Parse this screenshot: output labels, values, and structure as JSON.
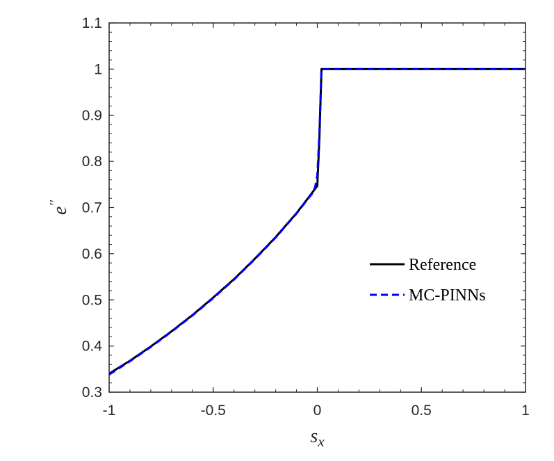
{
  "chart_data": {
    "type": "line",
    "xlabel": "s",
    "xlabel_sub": "x",
    "ylabel": "e",
    "ylabel_sup": "′′",
    "xlim": [
      -1,
      1
    ],
    "ylim": [
      0.3,
      1.1
    ],
    "xticks": [
      -1,
      -0.5,
      0,
      0.5,
      1
    ],
    "xtick_labels": [
      "-1",
      "-0.5",
      "0",
      "0.5",
      "1"
    ],
    "yticks": [
      0.3,
      0.4,
      0.5,
      0.6,
      0.7,
      0.8,
      0.9,
      1.0,
      1.1
    ],
    "ytick_labels": [
      "0.3",
      "0.4",
      "0.5",
      "0.6",
      "0.7",
      "0.8",
      "0.9",
      "1",
      "1.1"
    ],
    "grid": false,
    "box": true,
    "legend_position": "right",
    "series": [
      {
        "name": "Reference",
        "color": "#000000",
        "style": "solid",
        "x": [
          -1,
          -0.9,
          -0.8,
          -0.7,
          -0.6,
          -0.5,
          -0.4,
          -0.3,
          -0.2,
          -0.1,
          -0.05,
          -0.02,
          0.0,
          0.01,
          0.02,
          0.5,
          1.0
        ],
        "y": [
          0.34,
          0.368,
          0.399,
          0.432,
          0.467,
          0.505,
          0.545,
          0.589,
          0.636,
          0.688,
          0.717,
          0.735,
          0.747,
          0.85,
          1.0,
          1.0,
          1.0
        ]
      },
      {
        "name": "MC-PINNs",
        "color": "#0000ff",
        "style": "dashed",
        "x": [
          -1,
          -0.9,
          -0.8,
          -0.7,
          -0.6,
          -0.5,
          -0.4,
          -0.3,
          -0.2,
          -0.1,
          -0.05,
          -0.02,
          -0.01,
          0.0,
          0.01,
          0.02,
          0.5,
          1.0
        ],
        "y": [
          0.338,
          0.367,
          0.398,
          0.431,
          0.466,
          0.504,
          0.544,
          0.588,
          0.635,
          0.687,
          0.716,
          0.733,
          0.745,
          0.77,
          0.86,
          1.0,
          1.0,
          1.0
        ]
      }
    ]
  }
}
